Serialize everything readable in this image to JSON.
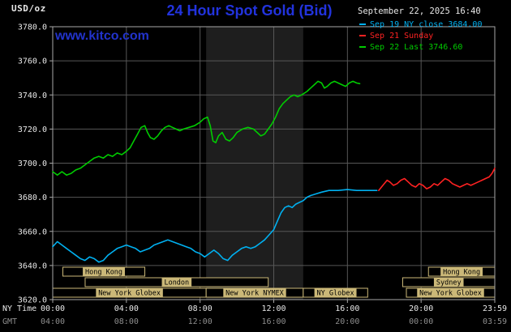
{
  "colors": {
    "background": "#000000",
    "title_blue": "#2233dd",
    "watermark_blue": "#2233cc",
    "grid": "#575757",
    "border": "#a8a8a8",
    "session_box": "#cbb878",
    "axis_text": "#e8e8e8",
    "gmt_text": "#8f8f8f",
    "cyan": "#00b0f0",
    "red": "#ff2222",
    "green": "#00cc00"
  },
  "header": {
    "units_label": "USD/oz",
    "title": "24 Hour Spot Gold (Bid)",
    "datetime": "September 22, 2025 16:40",
    "watermark": "www.kitco.com",
    "legend": [
      {
        "label": "Sep 19 NY close 3684.00",
        "color": "#00b0f0"
      },
      {
        "label": "Sep 21 Sunday",
        "color": "#ff2222"
      },
      {
        "label": "Sep 22 Last 3746.60",
        "color": "#00cc00"
      }
    ]
  },
  "axes": {
    "ny_time_label": "NY Time",
    "gmt_label": "GMT",
    "x_tick_hours": [
      0,
      4,
      8,
      12,
      16,
      20,
      24
    ],
    "x_ticks_ny": [
      "00:00",
      "04:00",
      "08:00",
      "12:00",
      "16:00",
      "20:00",
      "23:59"
    ],
    "x_ticks_gmt": [
      "04:00",
      "08:00",
      "12:00",
      "16:00",
      "20:00",
      "00:00",
      "03:59"
    ],
    "y_ticks": [
      3780,
      3760,
      3740,
      3720,
      3700,
      3680,
      3660,
      3640,
      3620
    ]
  },
  "chart_data": {
    "type": "line",
    "title": "24 Hour Spot Gold (Bid)",
    "xlabel": "NY Time",
    "ylabel": "USD/oz",
    "xlim": [
      0,
      24
    ],
    "ylim": [
      3620,
      3780
    ],
    "grid": true,
    "legend_position": "top-right",
    "highlight_band": {
      "start": 8.33,
      "end": 13.6,
      "color": "#1e1e1e"
    },
    "series": [
      {
        "id": "sep19",
        "name": "Sep 19 NY close",
        "color": "#00b0f0",
        "close": 3684.0,
        "points": [
          [
            0,
            3651
          ],
          [
            0.25,
            3654
          ],
          [
            0.5,
            3652
          ],
          [
            0.75,
            3650
          ],
          [
            1,
            3648
          ],
          [
            1.25,
            3646
          ],
          [
            1.5,
            3644
          ],
          [
            1.75,
            3643
          ],
          [
            2,
            3645
          ],
          [
            2.25,
            3644
          ],
          [
            2.5,
            3642
          ],
          [
            2.75,
            3643
          ],
          [
            3,
            3646
          ],
          [
            3.25,
            3648
          ],
          [
            3.5,
            3650
          ],
          [
            3.75,
            3651
          ],
          [
            4,
            3652
          ],
          [
            4.25,
            3651
          ],
          [
            4.5,
            3650
          ],
          [
            4.75,
            3648
          ],
          [
            5,
            3649
          ],
          [
            5.25,
            3650
          ],
          [
            5.5,
            3652
          ],
          [
            5.75,
            3653
          ],
          [
            6,
            3654
          ],
          [
            6.25,
            3655
          ],
          [
            6.5,
            3654
          ],
          [
            6.75,
            3653
          ],
          [
            7,
            3652
          ],
          [
            7.25,
            3651
          ],
          [
            7.5,
            3650
          ],
          [
            7.75,
            3648
          ],
          [
            8,
            3647
          ],
          [
            8.25,
            3645
          ],
          [
            8.5,
            3647
          ],
          [
            8.75,
            3649
          ],
          [
            9,
            3647
          ],
          [
            9.25,
            3644
          ],
          [
            9.5,
            3643
          ],
          [
            9.75,
            3646
          ],
          [
            10,
            3648
          ],
          [
            10.25,
            3650
          ],
          [
            10.5,
            3651
          ],
          [
            10.75,
            3650
          ],
          [
            11,
            3651
          ],
          [
            11.25,
            3653
          ],
          [
            11.5,
            3655
          ],
          [
            11.75,
            3658
          ],
          [
            12,
            3661
          ],
          [
            12.2,
            3666
          ],
          [
            12.4,
            3671
          ],
          [
            12.6,
            3674
          ],
          [
            12.8,
            3675
          ],
          [
            13,
            3674
          ],
          [
            13.2,
            3676
          ],
          [
            13.4,
            3677
          ],
          [
            13.6,
            3678
          ],
          [
            13.8,
            3680
          ],
          [
            14,
            3681
          ],
          [
            14.3,
            3682
          ],
          [
            14.6,
            3683
          ],
          [
            15,
            3684
          ],
          [
            15.5,
            3684
          ],
          [
            16,
            3684.5
          ],
          [
            16.5,
            3684
          ],
          [
            17,
            3684
          ],
          [
            17.6,
            3684
          ]
        ]
      },
      {
        "id": "sep21",
        "name": "Sep 21 Sunday",
        "color": "#ff2222",
        "points": [
          [
            17.7,
            3684
          ],
          [
            17.85,
            3686
          ],
          [
            18,
            3688
          ],
          [
            18.15,
            3690
          ],
          [
            18.3,
            3689
          ],
          [
            18.5,
            3687
          ],
          [
            18.7,
            3688
          ],
          [
            18.9,
            3690
          ],
          [
            19.1,
            3691
          ],
          [
            19.3,
            3689
          ],
          [
            19.5,
            3687
          ],
          [
            19.7,
            3686
          ],
          [
            19.9,
            3688
          ],
          [
            20.1,
            3687
          ],
          [
            20.3,
            3685
          ],
          [
            20.5,
            3686
          ],
          [
            20.7,
            3688
          ],
          [
            20.9,
            3687
          ],
          [
            21.1,
            3689
          ],
          [
            21.3,
            3691
          ],
          [
            21.5,
            3690
          ],
          [
            21.7,
            3688
          ],
          [
            21.9,
            3687
          ],
          [
            22.1,
            3686
          ],
          [
            22.3,
            3687
          ],
          [
            22.5,
            3688
          ],
          [
            22.7,
            3687
          ],
          [
            22.9,
            3688
          ],
          [
            23.1,
            3689
          ],
          [
            23.3,
            3690
          ],
          [
            23.5,
            3691
          ],
          [
            23.7,
            3692
          ],
          [
            23.85,
            3694
          ],
          [
            24,
            3697
          ]
        ]
      },
      {
        "id": "sep22",
        "name": "Sep 22",
        "color": "#00cc00",
        "last": 3746.6,
        "points": [
          [
            0,
            3695
          ],
          [
            0.25,
            3693
          ],
          [
            0.5,
            3695
          ],
          [
            0.75,
            3693
          ],
          [
            1,
            3694
          ],
          [
            1.25,
            3696
          ],
          [
            1.5,
            3697
          ],
          [
            1.75,
            3699
          ],
          [
            2,
            3701
          ],
          [
            2.25,
            3703
          ],
          [
            2.5,
            3704
          ],
          [
            2.75,
            3703
          ],
          [
            3,
            3705
          ],
          [
            3.25,
            3704
          ],
          [
            3.5,
            3706
          ],
          [
            3.75,
            3705
          ],
          [
            4,
            3707
          ],
          [
            4.2,
            3709
          ],
          [
            4.4,
            3713
          ],
          [
            4.6,
            3717
          ],
          [
            4.8,
            3721
          ],
          [
            5,
            3722
          ],
          [
            5.15,
            3718
          ],
          [
            5.3,
            3715
          ],
          [
            5.5,
            3714
          ],
          [
            5.7,
            3716
          ],
          [
            5.9,
            3719
          ],
          [
            6.1,
            3721
          ],
          [
            6.3,
            3722
          ],
          [
            6.5,
            3721
          ],
          [
            6.7,
            3720
          ],
          [
            6.9,
            3719
          ],
          [
            7.1,
            3720
          ],
          [
            7.4,
            3721
          ],
          [
            7.7,
            3722
          ],
          [
            8,
            3724
          ],
          [
            8.2,
            3726
          ],
          [
            8.4,
            3727
          ],
          [
            8.55,
            3722
          ],
          [
            8.7,
            3713
          ],
          [
            8.85,
            3712
          ],
          [
            9,
            3716
          ],
          [
            9.2,
            3718
          ],
          [
            9.4,
            3714
          ],
          [
            9.6,
            3713
          ],
          [
            9.8,
            3715
          ],
          [
            10,
            3718
          ],
          [
            10.3,
            3720
          ],
          [
            10.6,
            3721
          ],
          [
            10.9,
            3720
          ],
          [
            11.1,
            3718
          ],
          [
            11.3,
            3716
          ],
          [
            11.5,
            3717
          ],
          [
            11.7,
            3720
          ],
          [
            11.9,
            3723
          ],
          [
            12.1,
            3727
          ],
          [
            12.3,
            3732
          ],
          [
            12.5,
            3735
          ],
          [
            12.7,
            3737
          ],
          [
            12.9,
            3739
          ],
          [
            13.1,
            3740
          ],
          [
            13.3,
            3739
          ],
          [
            13.5,
            3740
          ],
          [
            13.8,
            3742
          ],
          [
            14,
            3744
          ],
          [
            14.2,
            3746
          ],
          [
            14.4,
            3748
          ],
          [
            14.6,
            3747
          ],
          [
            14.75,
            3744
          ],
          [
            14.9,
            3745
          ],
          [
            15.1,
            3747
          ],
          [
            15.3,
            3748
          ],
          [
            15.5,
            3747
          ],
          [
            15.7,
            3746
          ],
          [
            15.9,
            3745
          ],
          [
            16.1,
            3747
          ],
          [
            16.3,
            3748
          ],
          [
            16.5,
            3747
          ],
          [
            16.67,
            3746.6
          ]
        ]
      }
    ],
    "sessions": [
      {
        "row": 0,
        "label": "Hong Kong",
        "start": 0.55,
        "end": 5.0
      },
      {
        "row": 0,
        "label": "Hong Kong",
        "start": 20.4,
        "end": 24
      },
      {
        "row": 1,
        "label": "London",
        "start": 1.76,
        "end": 11.7
      },
      {
        "row": 1,
        "label": "Sydney",
        "start": 19.0,
        "end": 24
      },
      {
        "row": 2,
        "label": "New York Globex",
        "start": 0,
        "end": 8.33
      },
      {
        "row": 2,
        "label": "New York NYMEX",
        "start": 8.33,
        "end": 13.6
      },
      {
        "row": 2,
        "label": "NY Globex",
        "start": 13.6,
        "end": 17.1
      },
      {
        "row": 2,
        "label": "New York Globex",
        "start": 19.2,
        "end": 24
      }
    ]
  }
}
